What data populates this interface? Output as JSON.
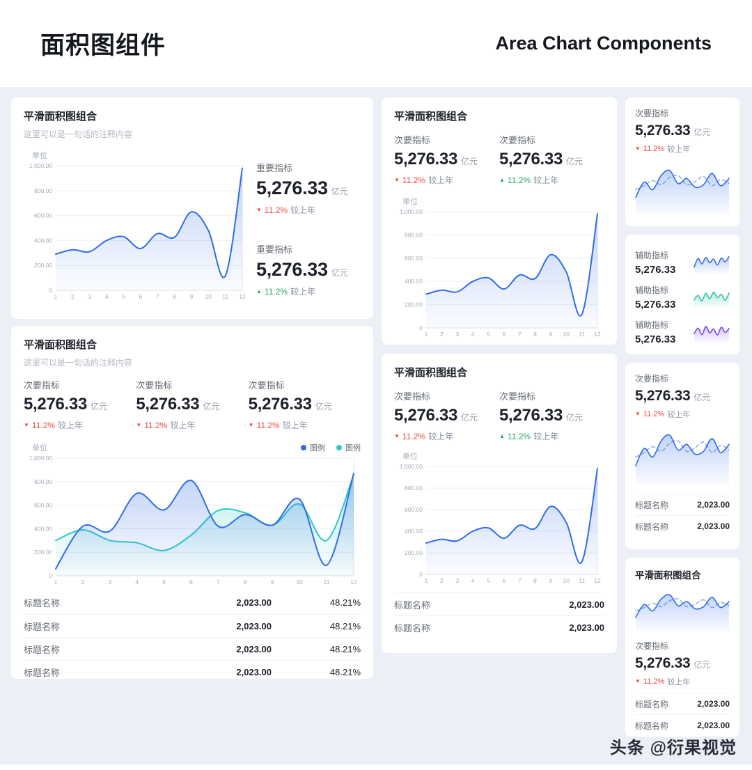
{
  "header": {
    "title_cn": "面积图组件",
    "title_en": "Area Chart Components"
  },
  "watermark": "头条 @衍果视觉",
  "icons": {
    "arrow_down": "▼",
    "arrow_up": "▲"
  },
  "colors": {
    "primary": "#2f6ce5",
    "teal": "#2ec8c9",
    "purple": "#7a45e5",
    "down_red": "#f0483e",
    "up_green": "#23a566",
    "page_bg": "#edeff6",
    "card_bg": "#ffffff"
  },
  "labels": {
    "card_title": "平滑面积图组合",
    "card_subtitle": "这里可以是一句话的注释内容",
    "metric_primary": "重要指标",
    "metric_secondary": "次要指标",
    "metric_aux": "辅助指标",
    "value": "5,276.33",
    "value_unit": "亿元",
    "delta_pct": "11.2%",
    "delta_suffix": "较上年",
    "legend": "图例",
    "row_label": "标题名称",
    "row_value": "2,023.00",
    "row_pct": "48.21%"
  },
  "chart_data": {
    "type": "area",
    "unit": "单位",
    "x": [
      "1",
      "2",
      "3",
      "4",
      "5",
      "6",
      "7",
      "8",
      "9",
      "10",
      "11",
      "12"
    ],
    "ylim": [
      0,
      1000
    ],
    "y_ticks": [
      "1,000.00",
      "800.00",
      "600.00",
      "400.00",
      "200.00",
      "0"
    ],
    "series": {
      "main": {
        "name": "平滑面积图",
        "color": "#2f6ce5",
        "fill": true,
        "values": [
          290,
          325,
          310,
          400,
          430,
          335,
          455,
          425,
          630,
          480,
          115,
          980
        ]
      },
      "blue2": {
        "name": "图例",
        "color": "#2f6ce5",
        "fill": true,
        "values": [
          60,
          420,
          380,
          700,
          560,
          810,
          420,
          520,
          430,
          650,
          90,
          870
        ]
      },
      "teal2": {
        "name": "图例",
        "color": "#2ec8c9",
        "fill": true,
        "values": [
          300,
          390,
          300,
          280,
          215,
          345,
          555,
          535,
          430,
          610,
          300,
          860
        ]
      },
      "small_solid": {
        "color": "#2f6ce5",
        "fill": true,
        "values": [
          35,
          65,
          50,
          78,
          88,
          62,
          72,
          55,
          60,
          82,
          58,
          72
        ]
      },
      "small_dash": {
        "color": "#8fb0ef",
        "fill": false,
        "dash": true,
        "values": [
          50,
          58,
          68,
          60,
          74,
          78,
          60,
          66,
          76,
          58,
          70,
          62
        ]
      },
      "spark_blue": {
        "color": "#2f6ce5",
        "fill": true,
        "values": [
          30,
          70,
          45,
          75,
          50,
          68,
          40,
          72,
          55,
          78
        ]
      },
      "spark_teal": {
        "color": "#27c2a2",
        "fill": true,
        "values": [
          40,
          60,
          35,
          70,
          45,
          75,
          50,
          65,
          38,
          72
        ]
      },
      "spark_purple": {
        "color": "#7a45e5",
        "fill": true,
        "values": [
          45,
          70,
          40,
          78,
          48,
          66,
          38,
          74,
          50,
          68
        ]
      }
    },
    "charts": {
      "card1": {
        "series": [
          "main"
        ],
        "axes": true,
        "ymax": 1000
      },
      "card2": {
        "series": [
          "teal2",
          "blue2"
        ],
        "axes": true,
        "ymax": 1000
      },
      "card3": {
        "series": [
          "main"
        ],
        "axes": true,
        "ymax": 1000
      },
      "card4": {
        "series": [
          "main"
        ],
        "axes": true,
        "ymax": 1000
      },
      "side1": {
        "series": [
          "small_dash",
          "small_solid"
        ],
        "axes": false,
        "ymax": 100
      },
      "side2": {
        "series": [
          "small_dash",
          "small_solid"
        ],
        "axes": false,
        "ymax": 100
      },
      "side3": {
        "series": [
          "small_dash",
          "small_solid"
        ],
        "axes": false,
        "ymax": 100
      },
      "spark1": {
        "series": [
          "spark_blue"
        ],
        "axes": false,
        "ymax": 100
      },
      "spark2": {
        "series": [
          "spark_teal"
        ],
        "axes": false,
        "ymax": 100
      },
      "spark3": {
        "series": [
          "spark_purple"
        ],
        "axes": false,
        "ymax": 100
      }
    }
  }
}
